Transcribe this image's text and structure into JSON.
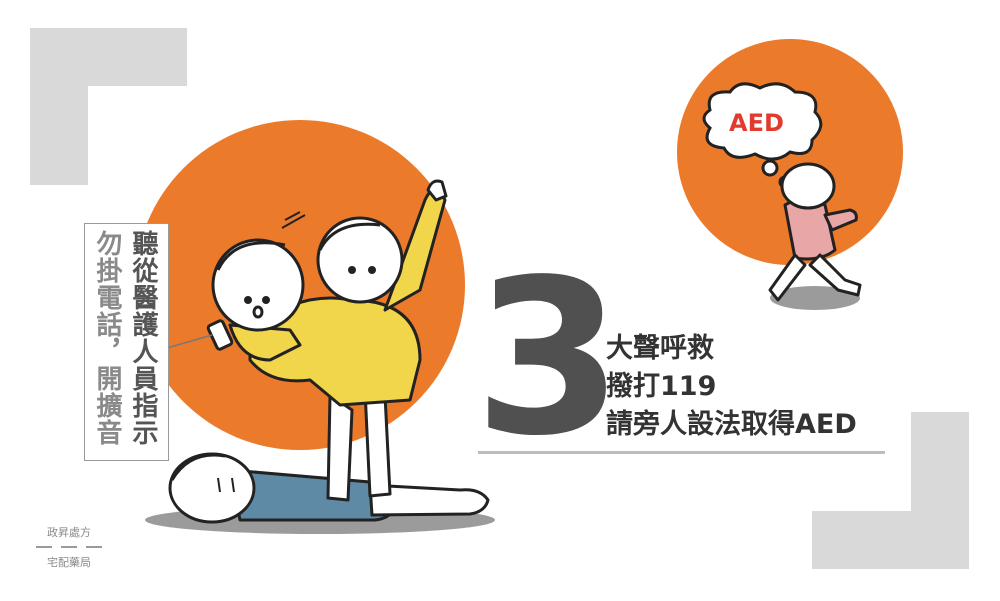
{
  "step": {
    "number": "3",
    "lines": [
      "大聲呼救",
      "撥打119",
      "請旁人設法取得AED"
    ]
  },
  "note": {
    "column1": "聽從醫護人員指示",
    "column2": "勿掛電話，開擴音"
  },
  "bubble": {
    "text": "AED"
  },
  "brand": {
    "top": "政昇處方",
    "bottom": "宅配藥局"
  },
  "colors": {
    "orange": "#ec7a2b",
    "yellow": "#f1d54a",
    "gray_block": "#d9d9d9",
    "blue_shirt": "#5e8aa6",
    "pink_shirt": "#e8a6a6",
    "text_dark": "#333333"
  }
}
